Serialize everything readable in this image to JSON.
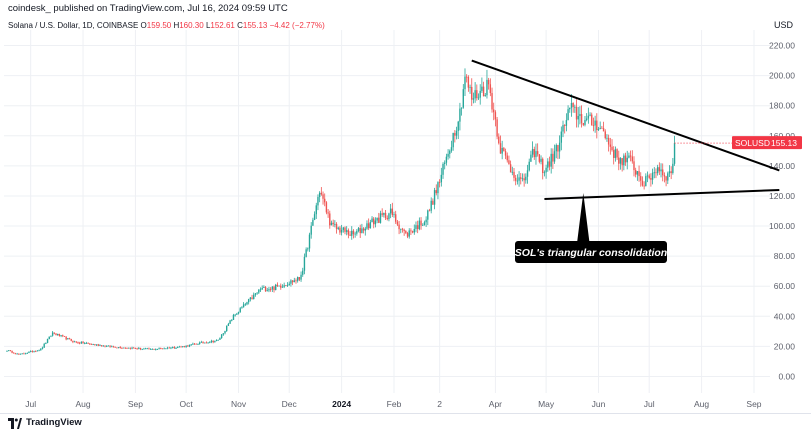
{
  "header": {
    "publisher": "coindesk_",
    "published_text": "published on TradingView.com, Jul 16, 2024 09:59 UTC"
  },
  "currency": "USD",
  "symbol_line": {
    "name": "Solana / U.S. Dollar, 1D, COINBASE",
    "o_label": "O",
    "o_value": "159.50",
    "h_label": "H",
    "h_value": "160.30",
    "l_label": "L",
    "l_value": "152.61",
    "c_label": "C",
    "c_value": "155.13",
    "change": "−4.42 (−2.77%)"
  },
  "price_tag": {
    "symbol": "SOLUSD",
    "value": "155.13"
  },
  "footer": {
    "brand": "TradingView"
  },
  "colors": {
    "up": "#26a69a",
    "down": "#ef5350",
    "tag": "#f23645",
    "grid": "#eef0f4",
    "axis_text": "#5d606b"
  },
  "chart_data": {
    "type": "candlestick",
    "title": "Solana / U.S. Dollar, 1D, COINBASE",
    "ylim": [
      -5,
      225
    ],
    "y_ticks": [
      0,
      20,
      40,
      60,
      80,
      100,
      120,
      140,
      160,
      180,
      200,
      220
    ],
    "y_tick_labels": [
      "0.00",
      "20.00",
      "40.00",
      "60.00",
      "80.00",
      "100.00",
      "120.00",
      "140.00",
      "160.00",
      "180.00",
      "200.00",
      "220.00"
    ],
    "x_tick_labels": [
      "Jul",
      "Aug",
      "Sep",
      "Oct",
      "Nov",
      "Dec",
      "2024",
      "Feb",
      "2",
      "Apr",
      "May",
      "Jun",
      "Jul",
      "Aug",
      "Sep"
    ],
    "x_tick_days": [
      14,
      45,
      76,
      106,
      137,
      167,
      198,
      229,
      256,
      289,
      319,
      350,
      380,
      411,
      442
    ],
    "start_date": "2023-06-17",
    "end_date": "2024-07-16",
    "price_path": [
      [
        0,
        17.5
      ],
      [
        7,
        14.5
      ],
      [
        20,
        18
      ],
      [
        27,
        29
      ],
      [
        40,
        23
      ],
      [
        60,
        20
      ],
      [
        85,
        18
      ],
      [
        105,
        20
      ],
      [
        113,
        22
      ],
      [
        125,
        24
      ],
      [
        134,
        40
      ],
      [
        150,
        58
      ],
      [
        158,
        59
      ],
      [
        173,
        65
      ],
      [
        175,
        72
      ],
      [
        185,
        124
      ],
      [
        192,
        100
      ],
      [
        205,
        94
      ],
      [
        215,
        102
      ],
      [
        227,
        109
      ],
      [
        236,
        94
      ],
      [
        248,
        105
      ],
      [
        256,
        130
      ],
      [
        260,
        145
      ],
      [
        268,
        176
      ],
      [
        271,
        200
      ],
      [
        275,
        185
      ],
      [
        285,
        194
      ],
      [
        292,
        152
      ],
      [
        298,
        138
      ],
      [
        305,
        128
      ],
      [
        312,
        150
      ],
      [
        318,
        137
      ],
      [
        325,
        150
      ],
      [
        333,
        178
      ],
      [
        342,
        170
      ],
      [
        350,
        168
      ],
      [
        361,
        145
      ],
      [
        369,
        143
      ],
      [
        377,
        128
      ],
      [
        385,
        139
      ],
      [
        391,
        133
      ],
      [
        393,
        137
      ],
      [
        395,
        151
      ],
      [
        395,
        160
      ],
      [
        395,
        155.13
      ]
    ],
    "last_close": 155.13,
    "trendlines": [
      {
        "name": "descending-resistance",
        "from": [
          "2024-03-18",
          210
        ],
        "to": [
          "2024-09-16",
          137
        ]
      },
      {
        "name": "ascending-support",
        "from": [
          "2024-04-30",
          118
        ],
        "to": [
          "2024-09-16",
          124
        ]
      }
    ],
    "annotation": {
      "text": "SOL's triangular consolidation",
      "points_to": [
        "2024-05-23",
        122
      ]
    }
  }
}
